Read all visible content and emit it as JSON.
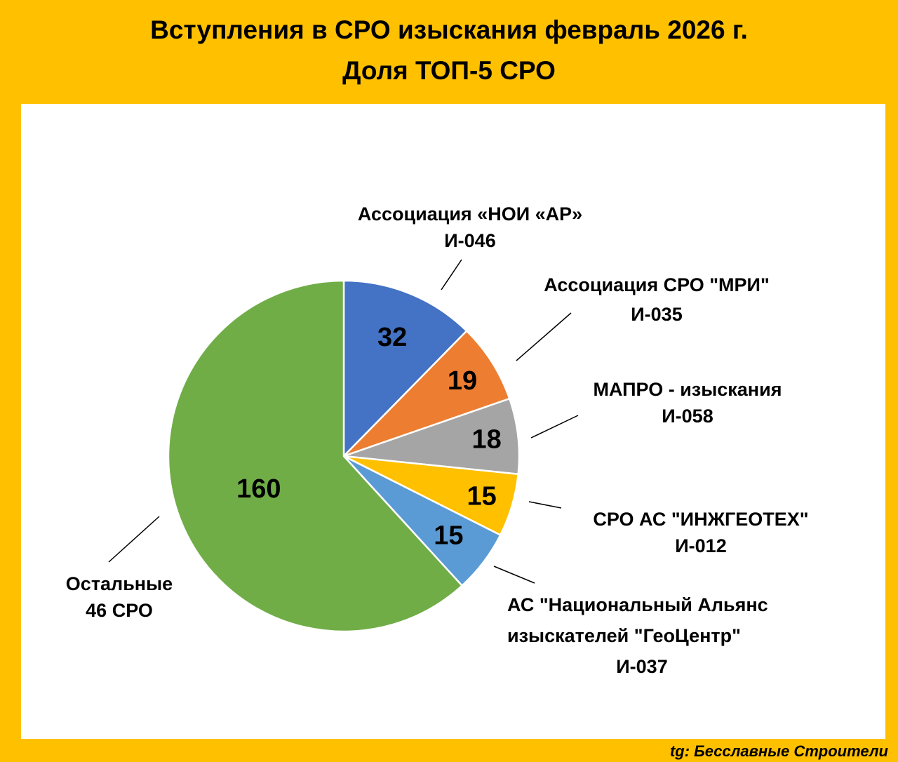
{
  "header": {
    "title_line1": "Вступления в СРО изыскания февраль 2026 г.",
    "title_line2": "Доля ТОП-5 СРО"
  },
  "footer": {
    "source": "tg: Бесславные Строители"
  },
  "chart_data": {
    "type": "pie",
    "start_angle_deg": 0,
    "direction": "clockwise",
    "slices": [
      {
        "value": 32,
        "color": "#4472C4",
        "label_lines": [
          "Ассоциация «НОИ «АР»",
          "И-046"
        ]
      },
      {
        "value": 19,
        "color": "#ED7D31",
        "label_lines": [
          "Ассоциация СРО \"МРИ\"",
          "И-035"
        ]
      },
      {
        "value": 18,
        "color": "#A5A5A5",
        "label_lines": [
          "МАПРО - изыскания",
          "И-058"
        ]
      },
      {
        "value": 15,
        "color": "#FFC000",
        "label_lines": [
          "СРО АС \"ИНЖГЕОТЕХ\"",
          "И-012"
        ]
      },
      {
        "value": 15,
        "color": "#5B9BD5",
        "label_lines": [
          "АС \"Национальный Альянс",
          "изыскателей \"ГеоЦентр\"",
          "И-037"
        ]
      },
      {
        "value": 160,
        "color": "#70AD47",
        "label_lines": [
          "Остальные",
          "46 СРО"
        ]
      }
    ]
  }
}
